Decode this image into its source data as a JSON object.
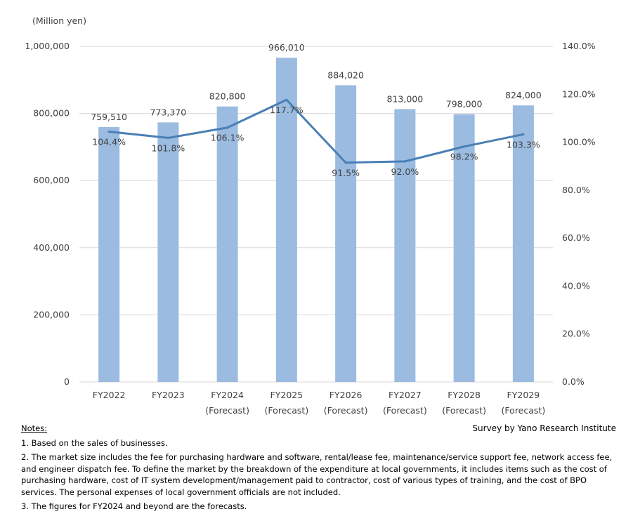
{
  "chart_data": {
    "type": "bar+line",
    "y_left_unit": "(Million yen)",
    "ylim_left": [
      0,
      1000000
    ],
    "ylim_right": [
      0,
      140
    ],
    "y_left_ticks": [
      "0",
      "200,000",
      "400,000",
      "600,000",
      "800,000",
      "1,000,000"
    ],
    "y_right_ticks": [
      "0.0%",
      "20.0%",
      "40.0%",
      "60.0%",
      "80.0%",
      "100.0%",
      "120.0%",
      "140.0%"
    ],
    "categories": [
      [
        "FY2022",
        ""
      ],
      [
        "FY2023",
        ""
      ],
      [
        "FY2024",
        "(Forecast)"
      ],
      [
        "FY2025",
        "(Forecast)"
      ],
      [
        "FY2026",
        "(Forecast)"
      ],
      [
        "FY2027",
        "(Forecast)"
      ],
      [
        "FY2028",
        "(Forecast)"
      ],
      [
        "FY2029",
        "(Forecast)"
      ]
    ],
    "bars": [
      759510,
      773370,
      820800,
      966010,
      884020,
      813000,
      798000,
      824000
    ],
    "bar_labels": [
      "759,510",
      "773,370",
      "820,800",
      "966,010",
      "884,020",
      "813,000",
      "798,000",
      "824,000"
    ],
    "line": [
      104.4,
      101.8,
      106.1,
      117.7,
      91.5,
      92.0,
      98.2,
      103.3
    ],
    "line_labels": [
      "104.4%",
      "101.8%",
      "106.1%",
      "117.7%",
      "91.5%",
      "92.0%",
      "98.2%",
      "103.3%"
    ],
    "grid": "horizontal",
    "colors": {
      "bar": "#9bbbe0",
      "line": "#4a7fb5",
      "grid": "#d9d9d9"
    }
  },
  "notes": {
    "title": "Notes:",
    "credit": "Survey by Yano Research Institute",
    "items": [
      "1.  Based on the sales of businesses.",
      "2.  The market size includes the fee for purchasing hardware and software, rental/lease fee, maintenance/service support fee,  network access fee, and engineer dispatch fee. To define the market by the breakdown of the expenditure at local governments, it includes items such as the cost of purchasing hardware, cost of IT system development/management paid to contractor, cost of various types of training, and the cost of BPO services. The personal expenses of local government officials are not included.",
      "3.  The figures for FY2024 and beyond are the forecasts."
    ]
  }
}
